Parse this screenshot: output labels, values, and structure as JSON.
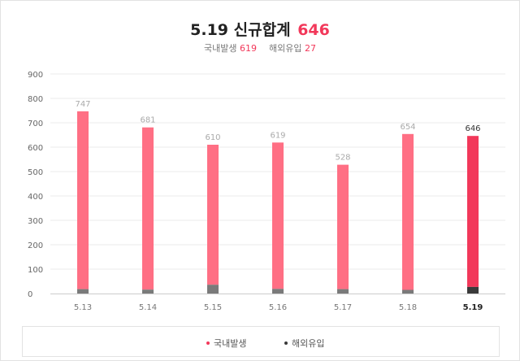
{
  "header": {
    "date": "5.19",
    "label": "신규합계",
    "total": "646",
    "domestic_label": "국내발생",
    "domestic_value": "619",
    "imported_label": "해외유입",
    "imported_value": "27"
  },
  "legend": {
    "domestic": "국내발생",
    "imported": "해외유입"
  },
  "colors": {
    "domestic": "#ff6f84",
    "domestic_highlight": "#f2385a",
    "imported": "#7a7a7a",
    "imported_highlight": "#3a3a3a",
    "accent": "#f2385a"
  },
  "chart_data": {
    "type": "bar",
    "stacked": true,
    "categories": [
      "5.13",
      "5.14",
      "5.15",
      "5.16",
      "5.17",
      "5.18",
      "5.19"
    ],
    "highlight_index": 6,
    "series": [
      {
        "name": "국내발생",
        "values": [
          729,
          665,
          574,
          600,
          510,
          639,
          619
        ]
      },
      {
        "name": "해외유입",
        "values": [
          18,
          16,
          36,
          19,
          18,
          15,
          27
        ]
      }
    ],
    "totals": [
      747,
      681,
      610,
      619,
      528,
      654,
      646
    ],
    "yticks": [
      0,
      100,
      200,
      300,
      400,
      500,
      600,
      700,
      800,
      900
    ],
    "ylim": [
      0,
      900
    ],
    "grid": true,
    "legend_position": "bottom"
  }
}
